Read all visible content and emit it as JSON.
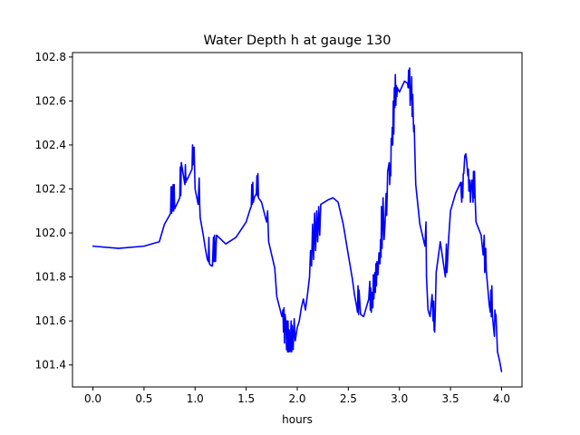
{
  "chart_data": {
    "type": "line",
    "title": "Water Depth h at gauge 130",
    "xlabel": "hours",
    "ylabel": "",
    "xlim": [
      -0.2,
      4.2
    ],
    "ylim": [
      101.3,
      102.82
    ],
    "xticks": [
      0.0,
      0.5,
      1.0,
      1.5,
      2.0,
      2.5,
      3.0,
      3.5,
      4.0
    ],
    "xtick_labels": [
      "0.0",
      "0.5",
      "1.0",
      "1.5",
      "2.0",
      "2.5",
      "3.0",
      "3.5",
      "4.0"
    ],
    "yticks": [
      101.4,
      101.6,
      101.8,
      102.0,
      102.2,
      102.4,
      102.6,
      102.8
    ],
    "ytick_labels": [
      "101.4",
      "101.6",
      "101.8",
      "102.0",
      "102.2",
      "102.4",
      "102.6",
      "102.8"
    ],
    "grid": false,
    "series": [
      {
        "color": "#0000ff",
        "x": [
          0.0,
          0.25,
          0.5,
          0.65,
          0.7,
          0.75,
          0.76,
          0.765,
          0.77,
          0.775,
          0.78,
          0.785,
          0.79,
          0.795,
          0.8,
          0.84,
          0.85,
          0.855,
          0.86,
          0.865,
          0.9,
          0.905,
          0.91,
          0.915,
          0.92,
          0.96,
          0.97,
          0.975,
          0.98,
          0.99,
          1.0,
          1.03,
          1.04,
          1.045,
          1.05,
          1.08,
          1.1,
          1.12,
          1.13,
          1.135,
          1.14,
          1.16,
          1.17,
          1.18,
          1.185,
          1.19,
          1.2,
          1.21,
          1.3,
          1.4,
          1.5,
          1.54,
          1.55,
          1.555,
          1.56,
          1.565,
          1.57,
          1.58,
          1.6,
          1.605,
          1.61,
          1.615,
          1.62,
          1.65,
          1.7,
          1.71,
          1.72,
          1.75,
          1.78,
          1.8,
          1.85,
          1.86,
          1.865,
          1.87,
          1.875,
          1.88,
          1.89,
          1.895,
          1.9,
          1.905,
          1.91,
          1.915,
          1.92,
          1.93,
          1.94,
          1.945,
          1.95,
          1.96,
          1.97,
          1.98,
          2.0,
          2.02,
          2.04,
          2.06,
          2.08,
          2.1,
          2.12,
          2.13,
          2.14,
          2.15,
          2.16,
          2.17,
          2.18,
          2.19,
          2.2,
          2.21,
          2.22,
          2.23,
          2.3,
          2.35,
          2.4,
          2.45,
          2.5,
          2.54,
          2.56,
          2.58,
          2.59,
          2.595,
          2.6,
          2.605,
          2.62,
          2.65,
          2.7,
          2.71,
          2.715,
          2.72,
          2.725,
          2.73,
          2.74,
          2.745,
          2.75,
          2.76,
          2.765,
          2.77,
          2.775,
          2.78,
          2.79,
          2.8,
          2.81,
          2.815,
          2.82,
          2.825,
          2.83,
          2.84,
          2.85,
          2.86,
          2.87,
          2.875,
          2.88,
          2.885,
          2.9,
          2.905,
          2.91,
          2.915,
          2.92,
          2.925,
          2.93,
          2.935,
          2.94,
          2.945,
          2.95,
          2.955,
          2.96,
          2.965,
          2.97,
          2.975,
          2.98,
          3.0,
          3.05,
          3.08,
          3.085,
          3.09,
          3.095,
          3.1,
          3.105,
          3.11,
          3.115,
          3.12,
          3.125,
          3.13,
          3.135,
          3.14,
          3.145,
          3.15,
          3.16,
          3.2,
          3.25,
          3.26,
          3.265,
          3.27,
          3.28,
          3.3,
          3.32,
          3.33,
          3.335,
          3.34,
          3.345,
          3.35,
          3.36,
          3.4,
          3.45,
          3.46,
          3.465,
          3.47,
          3.48,
          3.5,
          3.55,
          3.6,
          3.61,
          3.615,
          3.62,
          3.625,
          3.63,
          3.64,
          3.65,
          3.66,
          3.67,
          3.675,
          3.68,
          3.69,
          3.695,
          3.7,
          3.71,
          3.72,
          3.725,
          3.73,
          3.735,
          3.74,
          3.75,
          3.8,
          3.82,
          3.83,
          3.835,
          3.84,
          3.845,
          3.85,
          3.88,
          3.89,
          3.895,
          3.9,
          3.905,
          3.91,
          3.915,
          3.93,
          3.935,
          3.94,
          3.945,
          3.96,
          3.98,
          4.0
        ],
        "y": [
          101.94,
          101.93,
          101.94,
          101.96,
          102.04,
          102.08,
          102.09,
          102.21,
          102.09,
          102.21,
          102.1,
          102.22,
          102.1,
          102.22,
          102.11,
          102.15,
          102.16,
          102.3,
          102.17,
          102.32,
          102.22,
          102.31,
          102.23,
          102.25,
          102.24,
          102.28,
          102.29,
          102.4,
          102.31,
          102.39,
          102.2,
          102.13,
          102.25,
          102.13,
          102.07,
          101.99,
          101.93,
          101.88,
          101.87,
          101.98,
          101.86,
          101.85,
          101.85,
          101.98,
          101.87,
          101.99,
          101.87,
          101.99,
          101.95,
          101.98,
          102.05,
          102.11,
          102.12,
          102.22,
          102.13,
          102.23,
          102.14,
          102.16,
          102.18,
          102.26,
          102.17,
          102.27,
          102.16,
          102.14,
          102.05,
          102.1,
          101.96,
          101.9,
          101.84,
          101.71,
          101.62,
          101.65,
          101.55,
          101.66,
          101.5,
          101.63,
          101.59,
          101.47,
          101.6,
          101.46,
          101.6,
          101.46,
          101.56,
          101.46,
          101.6,
          101.46,
          101.58,
          101.47,
          101.61,
          101.51,
          101.57,
          101.6,
          101.66,
          101.7,
          101.65,
          101.72,
          101.8,
          101.92,
          101.85,
          102.04,
          101.88,
          102.09,
          101.92,
          102.1,
          101.96,
          102.12,
          101.99,
          102.13,
          102.15,
          102.16,
          102.14,
          102.04,
          101.9,
          101.79,
          101.72,
          101.67,
          101.64,
          101.76,
          101.63,
          101.74,
          101.63,
          101.62,
          101.7,
          101.78,
          101.65,
          101.75,
          101.64,
          101.73,
          101.66,
          101.81,
          101.7,
          101.82,
          101.73,
          101.86,
          101.76,
          101.87,
          101.81,
          101.91,
          101.86,
          101.97,
          101.89,
          102.12,
          101.93,
          102.16,
          101.97,
          102.05,
          102.18,
          102.08,
          102.17,
          102.28,
          102.32,
          102.22,
          102.31,
          102.26,
          102.43,
          102.4,
          102.48,
          102.4,
          102.6,
          102.45,
          102.66,
          102.57,
          102.72,
          102.58,
          102.67,
          102.62,
          102.66,
          102.64,
          102.69,
          102.68,
          102.66,
          102.74,
          102.66,
          102.75,
          102.58,
          102.66,
          102.61,
          102.71,
          102.53,
          102.63,
          102.53,
          102.46,
          102.49,
          102.39,
          102.22,
          102.04,
          101.94,
          102.05,
          101.8,
          101.75,
          101.65,
          101.62,
          101.72,
          101.6,
          101.69,
          101.56,
          101.55,
          101.62,
          101.82,
          101.96,
          101.8,
          101.95,
          101.82,
          101.86,
          101.96,
          102.1,
          102.18,
          102.23,
          102.14,
          102.23,
          102.16,
          102.27,
          102.27,
          102.35,
          102.36,
          102.32,
          102.26,
          102.29,
          102.19,
          102.24,
          102.14,
          102.2,
          102.24,
          102.14,
          102.28,
          102.16,
          102.28,
          102.17,
          102.05,
          101.99,
          101.9,
          101.99,
          101.82,
          101.86,
          101.93,
          101.83,
          101.67,
          101.64,
          101.74,
          101.62,
          101.76,
          101.63,
          101.6,
          101.53,
          101.65,
          101.6,
          101.63,
          101.46,
          101.42,
          101.37
        ]
      }
    ]
  }
}
